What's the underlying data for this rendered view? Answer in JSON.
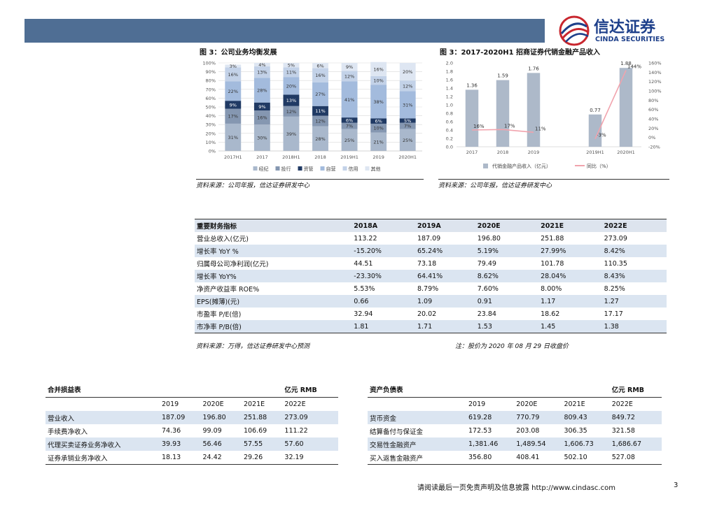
{
  "header": {
    "logo_cn": "信达证券",
    "logo_en": "CINDA SECURITIES"
  },
  "figures": [
    {
      "title": "图 3：公司业务均衡发展",
      "source": "资料来源：公司年报，信达证券研发中心"
    },
    {
      "title": "图 3：2017-2020H1 招商证券代销金融产品收入",
      "source": "资料来源：公司年报，信达证券研发中心"
    }
  ],
  "chart_data": [
    {
      "type": "stacked_bar",
      "categories": [
        "2017H1",
        "2017",
        "2018H1",
        "2018",
        "2019H1",
        "2019",
        "2020H1"
      ],
      "series": [
        {
          "name": "经纪",
          "color": "#a9b8cc",
          "values": [
            31,
            30,
            39,
            28,
            25,
            21,
            25
          ],
          "value_labels": [
            "31%",
            "30%",
            "39%",
            "28%",
            "25%",
            "21%",
            "25%"
          ]
        },
        {
          "name": "投行",
          "color": "#8597b1",
          "values": [
            17,
            16,
            12,
            12,
            7,
            10,
            7
          ],
          "value_labels": [
            "17%",
            "16%",
            "12%",
            "12%",
            "7%",
            "10%",
            "7%"
          ]
        },
        {
          "name": "资管",
          "color": "#203a64",
          "values": [
            9,
            9,
            13,
            11,
            6,
            6,
            5
          ],
          "value_labels": [
            "9%",
            "9%",
            "13%",
            "11%",
            "6%",
            "6%",
            "5%"
          ]
        },
        {
          "name": "自营",
          "color": "#a3bbdd",
          "values": [
            22,
            28,
            20,
            27,
            41,
            38,
            31
          ],
          "value_labels": [
            "22%",
            "28%",
            "20%",
            "27%",
            "41%",
            "38%",
            "31%"
          ]
        },
        {
          "name": "信用",
          "color": "#c3d2e8",
          "values": [
            16,
            13,
            11,
            16,
            12,
            10,
            12
          ],
          "value_labels": [
            "16%",
            "13%",
            "11%",
            "16%",
            "12%",
            "10%",
            "12%"
          ]
        },
        {
          "name": "其他",
          "color": "#dee6f2",
          "values": [
            3,
            4,
            5,
            6,
            9,
            16,
            20
          ],
          "value_labels": [
            "3%",
            "4%",
            "5%",
            "6%",
            "9%",
            "16%",
            "20%"
          ]
        }
      ],
      "ylim": [
        0,
        100
      ],
      "yticks": [
        {
          "value": 0,
          "label": "0%"
        },
        {
          "value": 10,
          "label": "10%"
        },
        {
          "value": 20,
          "label": "20%"
        },
        {
          "value": 30,
          "label": "30%"
        },
        {
          "value": 40,
          "label": "40%"
        },
        {
          "value": 50,
          "label": "50%"
        },
        {
          "value": 60,
          "label": "60%"
        },
        {
          "value": 70,
          "label": "70%"
        },
        {
          "value": 80,
          "label": "80%"
        },
        {
          "value": 90,
          "label": "90%"
        },
        {
          "value": 100,
          "label": "100%"
        }
      ],
      "grid": true,
      "legend": "bottom"
    },
    {
      "type": "bar_line",
      "categories": [
        "2017",
        "2018",
        "2019",
        null,
        "2019H1",
        "2020H1"
      ],
      "series": [
        {
          "name": "代销金融产品收入（亿元）",
          "color": "#adb9c9",
          "values": [
            1.36,
            1.59,
            1.76,
            null,
            0.77,
            1.88
          ]
        },
        {
          "name": "同比（%）",
          "color": "#f1a3ad",
          "axis": "y2",
          "values": [
            16,
            17,
            11,
            null,
            -3,
            144
          ],
          "value_labels": [
            "16%",
            "17%",
            "11%",
            null,
            "-3%",
            "144%"
          ]
        }
      ],
      "ylim": [
        0,
        2.0
      ],
      "yticks": [
        {
          "value": 0,
          "label": "0.0"
        },
        0.2,
        0.4,
        0.6,
        0.8,
        {
          "value": 1.0,
          "label": "1.0"
        },
        1.2,
        1.4,
        1.6,
        1.8,
        {
          "value": 2.0,
          "label": "2.0"
        }
      ],
      "y2lim": [
        -20,
        160
      ],
      "y2ticks": [
        {
          "value": -20,
          "label": "-20%"
        },
        {
          "value": 0,
          "label": "0%"
        },
        {
          "value": 20,
          "label": "20%"
        },
        {
          "value": 40,
          "label": "40%"
        },
        {
          "value": 60,
          "label": "60%"
        },
        {
          "value": 80,
          "label": "80%"
        },
        {
          "value": 100,
          "label": "100%"
        },
        {
          "value": 120,
          "label": "120%"
        },
        {
          "value": 140,
          "label": "140%"
        },
        {
          "value": 160,
          "label": "160%"
        }
      ],
      "grid": false,
      "legend": "bottom"
    }
  ],
  "main_table": {
    "header": [
      "重要财务指标",
      "2018A",
      "2019A",
      "2020E",
      "2021E",
      "2022E"
    ],
    "rows": [
      [
        "营业总收入(亿元)",
        "113.22",
        "187.09",
        "196.80",
        "251.88",
        "273.09"
      ],
      [
        "增长率 YoY %",
        "-15.20%",
        "65.24%",
        "5.19%",
        "27.99%",
        "8.42%"
      ],
      [
        "归属母公司净利润(亿元)",
        "44.51",
        "73.18",
        "79.49",
        "101.78",
        "110.35"
      ],
      [
        "增长率 YoY%",
        "-23.30%",
        "64.41%",
        "8.62%",
        "28.04%",
        "8.43%"
      ],
      [
        "净资产收益率 ROE%",
        "5.53%",
        "8.79%",
        "7.60%",
        "8.00%",
        "8.25%"
      ],
      [
        "EPS(摊薄)(元)",
        "0.66",
        "1.09",
        "0.91",
        "1.17",
        "1.27"
      ],
      [
        "市盈率 P/E(倍)",
        "32.94",
        "20.02",
        "23.84",
        "18.62",
        "17.17"
      ],
      [
        "市净率 P/B(倍)",
        "1.81",
        "1.71",
        "1.53",
        "1.45",
        "1.38"
      ]
    ],
    "source": "资料来源：万得，信达证券研发中心预测",
    "note": "注：股价为 2020 年 08 月 29 日收盘价"
  },
  "income_table": {
    "title": "合并损益表",
    "unit": "亿元 RMB",
    "header": [
      "2019",
      "2020E",
      "2021E",
      "2022E"
    ],
    "rows": [
      [
        "营业收入",
        "187.09",
        "196.80",
        "251.88",
        "273.09"
      ],
      [
        "手续费净收入",
        "74.36",
        "99.09",
        "106.69",
        "111.22"
      ],
      [
        "代理买卖证券业务净收入",
        "39.93",
        "56.46",
        "57.55",
        "57.60"
      ],
      [
        "证券承销业务净收入",
        "18.13",
        "24.42",
        "29.26",
        "32.19"
      ]
    ]
  },
  "balance_table": {
    "title": "资产负债表",
    "unit": "亿元 RMB",
    "header": [
      "2019",
      "2020E",
      "2021E",
      "2022E"
    ],
    "rows": [
      [
        "货币资金",
        "619.28",
        "770.79",
        "809.43",
        "849.72"
      ],
      [
        "结算备付与保证金",
        "172.53",
        "203.08",
        "306.35",
        "321.58"
      ],
      [
        "交易性金融资产",
        "1,381.46",
        "1,489.54",
        "1,606.73",
        "1,686.67"
      ],
      [
        "买入返售金融资产",
        "356.80",
        "408.41",
        "502.10",
        "527.08"
      ]
    ]
  },
  "footer": {
    "disclaimer": "请阅读最后一页免责声明及信息披露 http://www.cindasc.com",
    "page": "3"
  }
}
